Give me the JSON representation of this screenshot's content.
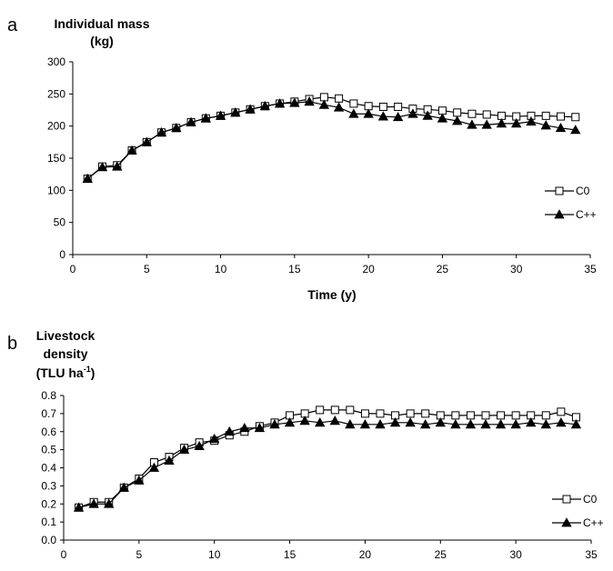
{
  "chart_data": [
    {
      "type": "line",
      "panel_label": "a",
      "ylabel_lines": [
        "Individual mass",
        "(kg)"
      ],
      "xlabel": "Time (y)",
      "xlim": [
        0,
        35
      ],
      "ylim": [
        0,
        300
      ],
      "xticks": [
        "0",
        "5",
        "10",
        "15",
        "20",
        "25",
        "30",
        "35"
      ],
      "yticks": [
        "0",
        "50",
        "100",
        "150",
        "200",
        "250",
        "300"
      ],
      "legend_position": "right",
      "grid": false,
      "x": [
        1,
        2,
        3,
        4,
        5,
        6,
        7,
        8,
        9,
        10,
        11,
        12,
        13,
        14,
        15,
        16,
        17,
        18,
        19,
        20,
        21,
        22,
        23,
        24,
        25,
        26,
        27,
        28,
        29,
        30,
        31,
        32,
        33,
        34
      ],
      "series": [
        {
          "name": "C0",
          "marker": "open-square",
          "values": [
            118,
            137,
            139,
            162,
            175,
            190,
            197,
            206,
            212,
            216,
            221,
            226,
            231,
            235,
            238,
            242,
            245,
            243,
            235,
            231,
            230,
            230,
            227,
            226,
            224,
            221,
            219,
            218,
            216,
            215,
            216,
            216,
            215,
            214
          ]
        },
        {
          "name": "C++",
          "marker": "filled-triangle",
          "values": [
            118,
            136,
            137,
            162,
            175,
            190,
            197,
            206,
            212,
            216,
            221,
            226,
            231,
            235,
            236,
            238,
            233,
            229,
            219,
            219,
            215,
            214,
            219,
            216,
            212,
            208,
            202,
            202,
            204,
            204,
            207,
            201,
            197,
            194
          ]
        }
      ]
    },
    {
      "type": "line",
      "panel_label": "b",
      "ylabel_lines": [
        "Livestock",
        "density",
        "(TLU ha",
        "-1",
        ")"
      ],
      "xlabel": "",
      "xlim": [
        0,
        35
      ],
      "ylim": [
        0,
        0.8
      ],
      "xticks": [
        "0",
        "5",
        "10",
        "15",
        "20",
        "25",
        "30",
        "35"
      ],
      "yticks": [
        "0.0",
        "0.1",
        "0.2",
        "0.3",
        "0.4",
        "0.5",
        "0.6",
        "0.7",
        "0.8"
      ],
      "legend_position": "right",
      "grid": false,
      "x": [
        1,
        2,
        3,
        4,
        5,
        6,
        7,
        8,
        9,
        10,
        11,
        12,
        13,
        14,
        15,
        16,
        17,
        18,
        19,
        20,
        21,
        22,
        23,
        24,
        25,
        26,
        27,
        28,
        29,
        30,
        31,
        32,
        33,
        34
      ],
      "series": [
        {
          "name": "C0",
          "marker": "open-square",
          "values": [
            0.18,
            0.21,
            0.21,
            0.29,
            0.34,
            0.43,
            0.46,
            0.51,
            0.54,
            0.55,
            0.58,
            0.6,
            0.63,
            0.65,
            0.69,
            0.7,
            0.72,
            0.72,
            0.72,
            0.7,
            0.7,
            0.69,
            0.7,
            0.7,
            0.69,
            0.69,
            0.69,
            0.69,
            0.69,
            0.69,
            0.69,
            0.69,
            0.71,
            0.68
          ]
        },
        {
          "name": "C++",
          "marker": "filled-triangle",
          "values": [
            0.18,
            0.2,
            0.2,
            0.29,
            0.33,
            0.4,
            0.44,
            0.5,
            0.52,
            0.56,
            0.6,
            0.62,
            0.62,
            0.64,
            0.65,
            0.66,
            0.65,
            0.66,
            0.64,
            0.64,
            0.64,
            0.65,
            0.65,
            0.64,
            0.65,
            0.64,
            0.64,
            0.64,
            0.64,
            0.64,
            0.65,
            0.64,
            0.65,
            0.64
          ]
        }
      ]
    }
  ]
}
